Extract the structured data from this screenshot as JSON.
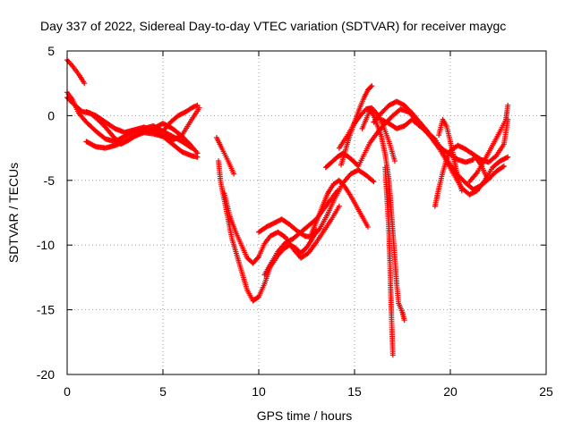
{
  "chart_data": {
    "type": "scatter",
    "title": "Day 337 of 2022, Sidereal Day-to-day VTEC variation (SDTVAR) for receiver maygc",
    "xlabel": "GPS time / hours",
    "ylabel": "SDTVAR / TECUs",
    "xlim": [
      0,
      25
    ],
    "ylim": [
      -20,
      5
    ],
    "xticks": [
      0,
      5,
      10,
      15,
      20,
      25
    ],
    "yticks": [
      5,
      0,
      -5,
      -10,
      -15,
      -20
    ],
    "grid": true,
    "marker": "+",
    "series_color": "#ff0000",
    "series": [
      {
        "name": "s1",
        "points": [
          [
            0.0,
            4.3
          ],
          [
            0.3,
            3.8
          ],
          [
            0.6,
            3.2
          ],
          [
            0.9,
            2.5
          ]
        ]
      },
      {
        "name": "s2",
        "points": [
          [
            0.0,
            1.8
          ],
          [
            0.3,
            1.2
          ],
          [
            0.6,
            0.2
          ],
          [
            1.0,
            -0.5
          ],
          [
            1.5,
            -1.2
          ],
          [
            2.0,
            -1.8
          ],
          [
            2.5,
            -2.0
          ],
          [
            3.0,
            -1.6
          ],
          [
            3.5,
            -1.2
          ],
          [
            4.0,
            -1.0
          ],
          [
            4.5,
            -0.8
          ],
          [
            5.0,
            -1.2
          ],
          [
            5.5,
            -1.6
          ],
          [
            6.0,
            -2.0
          ],
          [
            6.5,
            -2.5
          ]
        ]
      },
      {
        "name": "s3",
        "points": [
          [
            0.0,
            1.4
          ],
          [
            0.4,
            0.8
          ],
          [
            0.8,
            0.3
          ],
          [
            1.2,
            0.2
          ],
          [
            1.6,
            -0.3
          ],
          [
            2.0,
            -0.9
          ],
          [
            2.4,
            -1.6
          ],
          [
            2.8,
            -2.2
          ],
          [
            3.2,
            -1.9
          ],
          [
            3.6,
            -1.5
          ],
          [
            4.0,
            -1.2
          ],
          [
            4.5,
            -1.0
          ],
          [
            5.0,
            -0.6
          ],
          [
            5.5,
            -1.0
          ],
          [
            6.0,
            -1.6
          ],
          [
            6.4,
            -2.2
          ],
          [
            6.8,
            -2.9
          ]
        ]
      },
      {
        "name": "s4",
        "points": [
          [
            1.0,
            -2.0
          ],
          [
            1.5,
            -2.4
          ],
          [
            2.0,
            -2.5
          ],
          [
            2.5,
            -2.3
          ],
          [
            3.0,
            -2.0
          ],
          [
            3.5,
            -1.6
          ],
          [
            4.0,
            -1.3
          ],
          [
            4.5,
            -1.4
          ],
          [
            5.0,
            -1.6
          ],
          [
            5.5,
            -2.2
          ],
          [
            6.0,
            -2.8
          ],
          [
            6.5,
            -3.1
          ],
          [
            6.8,
            -3.2
          ]
        ]
      },
      {
        "name": "s5",
        "points": [
          [
            5.0,
            -1.2
          ],
          [
            5.4,
            -0.5
          ],
          [
            5.8,
            0.0
          ],
          [
            6.2,
            0.3
          ],
          [
            6.5,
            0.6
          ],
          [
            6.8,
            0.8
          ]
        ]
      },
      {
        "name": "s6",
        "points": [
          [
            1.0,
            0.3
          ],
          [
            1.5,
            0.0
          ],
          [
            2.0,
            -0.5
          ],
          [
            2.5,
            -1.0
          ],
          [
            3.0,
            -1.3
          ],
          [
            3.5,
            -1.1
          ],
          [
            4.0,
            -0.9
          ],
          [
            4.5,
            -1.1
          ],
          [
            5.0,
            -1.6
          ],
          [
            5.5,
            -1.9
          ],
          [
            6.0,
            -1.5
          ],
          [
            6.5,
            -0.3
          ],
          [
            6.9,
            0.6
          ]
        ]
      },
      {
        "name": "s7",
        "points": [
          [
            7.8,
            -1.7
          ],
          [
            8.1,
            -2.6
          ],
          [
            8.4,
            -3.5
          ],
          [
            8.7,
            -4.5
          ]
        ]
      },
      {
        "name": "s8",
        "points": [
          [
            7.9,
            -3.5
          ],
          [
            8.0,
            -5.0
          ],
          [
            8.2,
            -6.5
          ],
          [
            8.4,
            -8.0
          ],
          [
            8.6,
            -9.5
          ],
          [
            8.8,
            -10.5
          ],
          [
            9.0,
            -11.5
          ],
          [
            9.2,
            -12.5
          ],
          [
            9.4,
            -13.5
          ],
          [
            9.7,
            -14.3
          ],
          [
            10.0,
            -14.0
          ],
          [
            10.3,
            -13.0
          ],
          [
            10.6,
            -11.7
          ],
          [
            11.0,
            -10.8
          ],
          [
            11.3,
            -10.3
          ],
          [
            11.6,
            -10.0
          ],
          [
            11.9,
            -10.2
          ],
          [
            12.2,
            -10.6
          ],
          [
            12.5,
            -10.2
          ],
          [
            12.8,
            -9.5
          ],
          [
            13.0,
            -8.8
          ]
        ]
      },
      {
        "name": "s9",
        "points": [
          [
            8.2,
            -6.0
          ],
          [
            8.5,
            -7.8
          ],
          [
            8.8,
            -9.0
          ],
          [
            9.1,
            -10.0
          ],
          [
            9.4,
            -11.0
          ],
          [
            9.7,
            -11.4
          ],
          [
            10.0,
            -10.9
          ],
          [
            10.3,
            -9.9
          ],
          [
            10.6,
            -9.3
          ],
          [
            11.0,
            -9.0
          ],
          [
            11.4,
            -9.4
          ],
          [
            11.8,
            -10.3
          ],
          [
            12.2,
            -11.0
          ],
          [
            12.6,
            -10.6
          ],
          [
            13.0,
            -9.8
          ],
          [
            13.4,
            -8.9
          ],
          [
            13.8,
            -8.0
          ],
          [
            14.2,
            -7.0
          ]
        ]
      },
      {
        "name": "s10",
        "points": [
          [
            10.3,
            -12.3
          ],
          [
            10.6,
            -11.5
          ],
          [
            11.0,
            -10.5
          ],
          [
            11.4,
            -9.8
          ],
          [
            11.8,
            -9.5
          ],
          [
            12.2,
            -9.0
          ],
          [
            12.6,
            -8.5
          ],
          [
            13.0,
            -8.0
          ],
          [
            13.4,
            -7.2
          ],
          [
            13.8,
            -6.4
          ],
          [
            14.1,
            -5.8
          ]
        ]
      },
      {
        "name": "s11",
        "points": [
          [
            10.0,
            -9.0
          ],
          [
            10.4,
            -8.6
          ],
          [
            10.8,
            -8.3
          ],
          [
            11.2,
            -8.0
          ],
          [
            11.6,
            -8.4
          ],
          [
            12.0,
            -8.9
          ],
          [
            12.4,
            -9.3
          ],
          [
            12.8,
            -9.4
          ],
          [
            13.2,
            -8.7
          ],
          [
            13.6,
            -7.6
          ],
          [
            14.0,
            -6.3
          ],
          [
            14.4,
            -5.2
          ],
          [
            14.8,
            -4.5
          ],
          [
            15.2,
            -4.2
          ],
          [
            15.6,
            -4.6
          ],
          [
            16.0,
            -5.1
          ]
        ]
      },
      {
        "name": "s12",
        "points": [
          [
            12.7,
            -9.3
          ],
          [
            13.0,
            -8.2
          ],
          [
            13.3,
            -7.1
          ],
          [
            13.6,
            -6.0
          ],
          [
            13.9,
            -5.3
          ],
          [
            14.2,
            -5.0
          ],
          [
            14.5,
            -5.5
          ],
          [
            14.8,
            -6.2
          ],
          [
            15.1,
            -7.0
          ],
          [
            15.4,
            -7.8
          ],
          [
            15.7,
            -8.6
          ]
        ]
      },
      {
        "name": "s13",
        "points": [
          [
            14.3,
            -3.8
          ],
          [
            14.5,
            -2.8
          ],
          [
            14.7,
            -1.8
          ],
          [
            14.9,
            -0.9
          ],
          [
            15.1,
            -0.1
          ],
          [
            15.3,
            0.7
          ],
          [
            15.5,
            1.4
          ],
          [
            15.7,
            2.0
          ],
          [
            15.9,
            2.3
          ]
        ]
      },
      {
        "name": "s14",
        "points": [
          [
            14.2,
            -2.5
          ],
          [
            14.6,
            -1.6
          ],
          [
            15.0,
            -0.6
          ],
          [
            15.3,
            0.0
          ],
          [
            15.6,
            0.5
          ],
          [
            15.9,
            0.6
          ],
          [
            16.2,
            0.1
          ],
          [
            16.5,
            -0.8
          ],
          [
            16.8,
            -2.0
          ],
          [
            17.1,
            -3.5
          ]
        ]
      },
      {
        "name": "s15",
        "points": [
          [
            13.5,
            -4.0
          ],
          [
            13.8,
            -3.6
          ],
          [
            14.1,
            -3.2
          ],
          [
            14.4,
            -2.9
          ],
          [
            14.7,
            -3.2
          ],
          [
            15.0,
            -3.6
          ],
          [
            15.2,
            -3.9
          ],
          [
            15.5,
            -3.0
          ],
          [
            15.8,
            -2.1
          ],
          [
            16.2,
            -1.3
          ],
          [
            16.6,
            -0.6
          ],
          [
            17.0,
            0.0
          ],
          [
            17.4,
            0.5
          ],
          [
            17.8,
            0.3
          ],
          [
            18.2,
            -0.3
          ],
          [
            18.6,
            -0.9
          ]
        ]
      },
      {
        "name": "s16",
        "points": [
          [
            15.4,
            -1.0
          ],
          [
            15.6,
            -0.3
          ],
          [
            15.8,
            0.4
          ],
          [
            16.0,
            0.0
          ],
          [
            16.2,
            -0.8
          ],
          [
            16.4,
            -1.6
          ],
          [
            16.6,
            -3.0
          ],
          [
            16.8,
            -5.0
          ],
          [
            16.9,
            -7.0
          ],
          [
            17.0,
            -9.0
          ],
          [
            17.1,
            -11.0
          ],
          [
            17.2,
            -13.0
          ],
          [
            17.3,
            -14.5
          ],
          [
            17.5,
            -15.2
          ],
          [
            17.6,
            -15.8
          ]
        ]
      },
      {
        "name": "s17",
        "points": [
          [
            16.6,
            -4.0
          ],
          [
            16.7,
            -6.5
          ],
          [
            16.8,
            -9.0
          ],
          [
            16.85,
            -11.5
          ],
          [
            16.9,
            -14.0
          ],
          [
            16.95,
            -16.5
          ],
          [
            17.0,
            -18.5
          ]
        ]
      },
      {
        "name": "s18",
        "points": [
          [
            16.0,
            -0.5
          ],
          [
            16.4,
            0.2
          ],
          [
            16.8,
            0.8
          ],
          [
            17.2,
            1.1
          ],
          [
            17.6,
            0.8
          ],
          [
            18.0,
            0.2
          ],
          [
            18.4,
            -0.5
          ],
          [
            18.8,
            -1.2
          ],
          [
            19.2,
            -2.0
          ],
          [
            19.6,
            -2.6
          ],
          [
            20.0,
            -3.0
          ],
          [
            20.4,
            -3.4
          ],
          [
            20.8,
            -3.6
          ],
          [
            21.2,
            -3.4
          ]
        ]
      },
      {
        "name": "s19",
        "points": [
          [
            16.4,
            -0.3
          ],
          [
            16.8,
            -0.6
          ],
          [
            17.2,
            -1.0
          ],
          [
            17.6,
            -0.8
          ],
          [
            18.0,
            -0.3
          ],
          [
            18.4,
            -0.8
          ],
          [
            18.8,
            -1.3
          ],
          [
            19.2,
            -1.8
          ],
          [
            19.6,
            -2.8
          ],
          [
            20.0,
            -3.8
          ],
          [
            20.4,
            -4.6
          ],
          [
            20.8,
            -5.2
          ],
          [
            21.2,
            -5.7
          ],
          [
            21.6,
            -5.4
          ],
          [
            22.0,
            -4.9
          ],
          [
            22.4,
            -4.3
          ],
          [
            22.8,
            -3.9
          ]
        ]
      },
      {
        "name": "s20",
        "points": [
          [
            18.6,
            -1.0
          ],
          [
            19.0,
            -1.7
          ],
          [
            19.4,
            -2.5
          ],
          [
            19.8,
            -3.5
          ],
          [
            20.2,
            -4.6
          ],
          [
            20.6,
            -5.6
          ],
          [
            21.0,
            -6.1
          ],
          [
            21.4,
            -5.8
          ],
          [
            21.8,
            -5.0
          ],
          [
            22.2,
            -4.0
          ],
          [
            22.6,
            -3.5
          ],
          [
            23.0,
            -3.2
          ]
        ]
      },
      {
        "name": "s21",
        "points": [
          [
            19.4,
            -1.5
          ],
          [
            19.6,
            -0.3
          ],
          [
            19.8,
            -0.8
          ],
          [
            20.0,
            -2.0
          ],
          [
            20.2,
            -3.4
          ],
          [
            20.4,
            -4.9
          ],
          [
            20.6,
            -5.8
          ]
        ]
      },
      {
        "name": "s22",
        "points": [
          [
            19.2,
            -7.0
          ],
          [
            19.4,
            -5.6
          ],
          [
            19.6,
            -4.4
          ],
          [
            19.8,
            -3.4
          ],
          [
            20.0,
            -2.7
          ],
          [
            20.4,
            -2.3
          ],
          [
            20.8,
            -2.6
          ],
          [
            21.2,
            -3.0
          ],
          [
            21.6,
            -3.8
          ],
          [
            21.9,
            -4.8
          ]
        ]
      },
      {
        "name": "s23",
        "points": [
          [
            21.0,
            -5.1
          ],
          [
            21.4,
            -4.4
          ],
          [
            21.8,
            -3.4
          ],
          [
            22.2,
            -2.3
          ],
          [
            22.6,
            -1.2
          ],
          [
            22.9,
            -0.3
          ],
          [
            23.0,
            0.8
          ]
        ]
      },
      {
        "name": "s24",
        "points": [
          [
            21.2,
            -3.0
          ],
          [
            21.6,
            -3.4
          ],
          [
            22.0,
            -3.6
          ],
          [
            22.4,
            -3.1
          ],
          [
            22.8,
            -2.2
          ],
          [
            23.0,
            -0.3
          ]
        ]
      }
    ]
  }
}
